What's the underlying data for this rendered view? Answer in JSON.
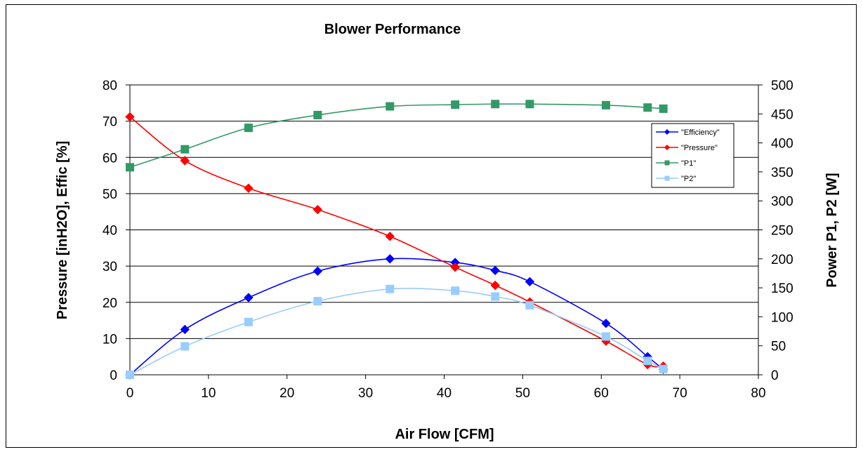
{
  "chart_data": {
    "type": "line",
    "title": "Blower Performance",
    "xlabel": "Air Flow [CFM]",
    "ylabel": "Pressure [inH2O], Effic [%]",
    "y2label": "Power P1, P2 [W]",
    "xlim": [
      0,
      80
    ],
    "ylim": [
      0,
      80
    ],
    "y2lim": [
      0,
      500
    ],
    "x_ticks": [
      0,
      10,
      20,
      30,
      40,
      50,
      60,
      70,
      80
    ],
    "y_ticks": [
      0,
      10,
      20,
      30,
      40,
      50,
      60,
      70,
      80
    ],
    "y2_ticks": [
      0,
      50,
      100,
      150,
      200,
      250,
      300,
      350,
      400,
      450,
      500
    ],
    "grid": "horizontal major",
    "legend_position": "right",
    "series": [
      {
        "name": "\"Efficiency\"",
        "axis": "left",
        "color": "#0000ff",
        "marker": "diamond",
        "x": [
          0,
          7,
          15.1,
          23.9,
          33.1,
          41.4,
          46.5,
          50.9,
          60.6,
          65.9,
          67.9
        ],
        "y": [
          0,
          12.5,
          21.3,
          28.6,
          32.0,
          31.0,
          28.8,
          25.7,
          14.2,
          5.0,
          1.5
        ]
      },
      {
        "name": "\"Pressure\"",
        "axis": "left",
        "color": "#ff0000",
        "marker": "diamond",
        "x": [
          0,
          7,
          15.1,
          23.9,
          33.1,
          41.4,
          46.5,
          50.9,
          60.6,
          65.9,
          67.9
        ],
        "y": [
          71.2,
          59.1,
          51.5,
          45.6,
          38.2,
          29.7,
          24.7,
          20.1,
          9.3,
          2.8,
          2.4
        ]
      },
      {
        "name": "\"P1\"",
        "axis": "right",
        "color": "#339966",
        "marker": "square",
        "x": [
          0,
          7,
          15.1,
          23.9,
          33.1,
          41.4,
          46.5,
          50.9,
          60.6,
          65.9,
          67.9
        ],
        "y": [
          358,
          389,
          426,
          448,
          463,
          466,
          467,
          467,
          465,
          461,
          459
        ]
      },
      {
        "name": "\"P2\"",
        "axis": "right",
        "color": "#99ccff",
        "marker": "square",
        "x": [
          0,
          7,
          15.1,
          23.9,
          33.1,
          41.4,
          46.5,
          50.9,
          60.6,
          65.9,
          67.9
        ],
        "y": [
          0,
          49,
          91,
          127,
          148,
          145,
          135,
          120,
          66,
          24,
          10
        ]
      }
    ]
  }
}
